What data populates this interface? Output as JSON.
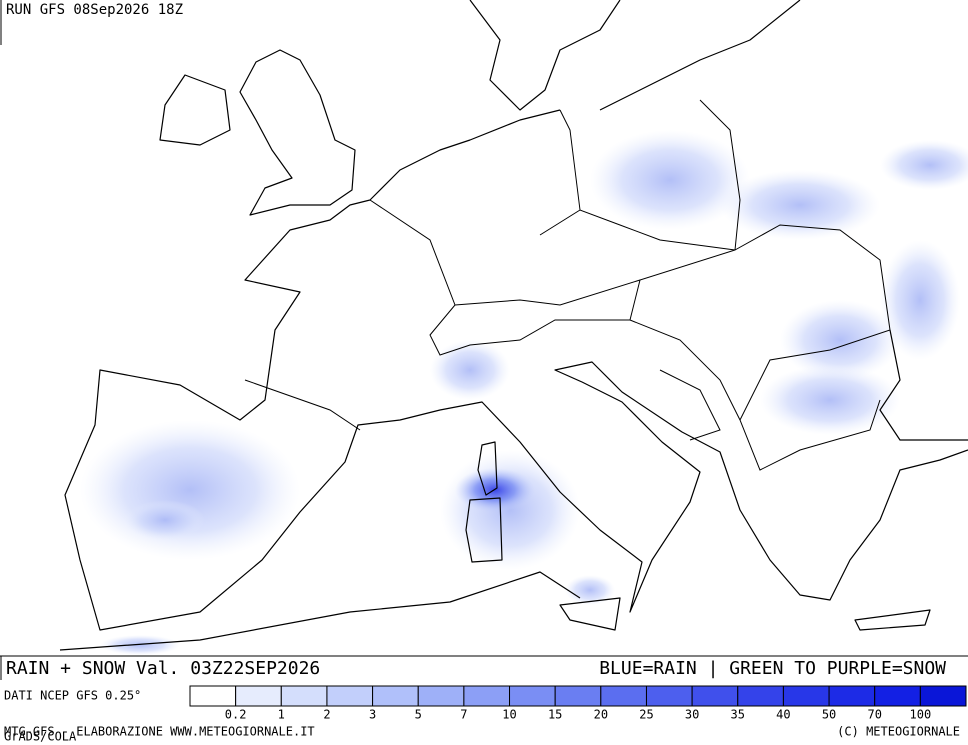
{
  "header": {
    "run": "RUN GFS 08Sep2026 18Z"
  },
  "footer": {
    "field": "RAIN + SNOW Val. 03Z22SEP2026",
    "key": "BLUE=RAIN | GREEN TO PURPLE=SNOW",
    "source": "DATI NCEP GFS 0.25°",
    "credit": "MTG-GFS - ELABORAZIONE WWW.METEOGIORNALE.IT",
    "software": "GrADS/COLA",
    "copyright": "(C) METEOGIORNALE"
  },
  "legend": {
    "labels": [
      "0.2",
      "1",
      "2",
      "3",
      "5",
      "7",
      "10",
      "15",
      "20",
      "25",
      "30",
      "35",
      "40",
      "50",
      "70",
      "100"
    ],
    "colors": [
      "#ffffff",
      "#e6ecfd",
      "#d4defc",
      "#c2cffb",
      "#b0c0fa",
      "#9eb0f8",
      "#8c9ff6",
      "#7a8ef4",
      "#6a7ef2",
      "#5b6ef0",
      "#4d5fee",
      "#4050ec",
      "#3443ea",
      "#2837e8",
      "#1d2be6",
      "#1320e4",
      "#0a16d8"
    ]
  }
}
